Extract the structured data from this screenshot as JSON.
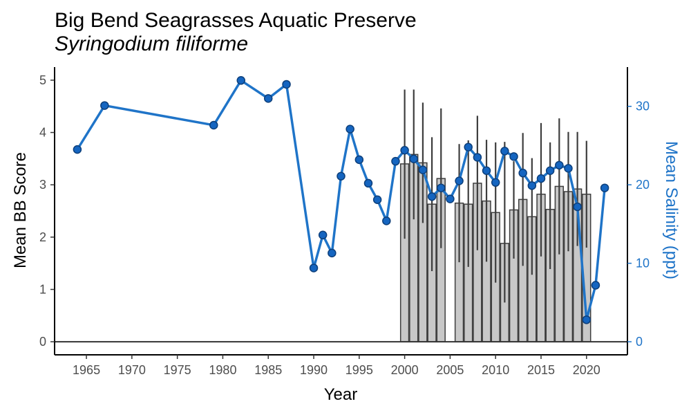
{
  "chart_data": {
    "type": "bar+line",
    "title": "Big Bend Seagrasses Aquatic Preserve",
    "subtitle": "Syringodium filiforme",
    "xlabel": "Year",
    "ylabel_left": "Mean BB Score",
    "ylabel_right": "Mean Salinity (ppt)",
    "xlim": [
      1961.5,
      2024.5
    ],
    "ylim_left": [
      -0.25,
      5.25
    ],
    "ylim_right": [
      -1.6667,
      35
    ],
    "x_ticks": [
      1965,
      1970,
      1975,
      1980,
      1985,
      1990,
      1995,
      2000,
      2005,
      2010,
      2015,
      2020
    ],
    "y_ticks_left": [
      0,
      1,
      2,
      3,
      4,
      5
    ],
    "y_ticks_right": [
      0,
      10,
      20,
      30
    ],
    "colors": {
      "bar_fill": "#c8c8c8",
      "bar_stroke": "#3d3d3d",
      "line": "#1f74c8",
      "point_fill": "#1565c0",
      "point_stroke": "#0d3f7a",
      "right_axis": "#1f74c8"
    },
    "bars": {
      "name": "Mean BB Score",
      "x": [
        2000,
        2001,
        2002,
        2003,
        2004,
        2006,
        2007,
        2008,
        2009,
        2010,
        2011,
        2012,
        2013,
        2014,
        2015,
        2016,
        2017,
        2018,
        2019,
        2020
      ],
      "values": [
        3.4,
        3.58,
        3.42,
        2.63,
        3.12,
        2.65,
        2.63,
        3.03,
        2.69,
        2.47,
        1.88,
        2.52,
        2.72,
        2.39,
        2.82,
        2.53,
        2.97,
        2.87,
        2.92,
        2.82
      ],
      "err_low": [
        1.97,
        2.34,
        2.27,
        1.35,
        1.79,
        1.52,
        1.43,
        1.75,
        1.53,
        1.13,
        0.75,
        1.59,
        1.45,
        1.28,
        1.63,
        1.39,
        1.67,
        1.73,
        1.83,
        1.8
      ],
      "err_high": [
        4.82,
        4.82,
        4.57,
        3.91,
        4.46,
        3.78,
        3.85,
        4.32,
        3.86,
        3.81,
        3.82,
        3.45,
        3.99,
        3.51,
        4.18,
        3.81,
        4.27,
        4.01,
        4.01,
        3.84
      ]
    },
    "line": {
      "name": "Mean Salinity (ppt)",
      "x": [
        1964,
        1967,
        1979,
        1982,
        1985,
        1987,
        1990,
        1991,
        1992,
        1993,
        1994,
        1995,
        1996,
        1997,
        1998,
        1999,
        2000,
        2001,
        2002,
        2003,
        2004,
        2005,
        2006,
        2007,
        2008,
        2009,
        2010,
        2011,
        2012,
        2013,
        2014,
        2015,
        2016,
        2017,
        2018,
        2019,
        2020,
        2021,
        2022
      ],
      "values": [
        24.5,
        30.1,
        27.6,
        33.3,
        31.0,
        32.8,
        9.4,
        13.6,
        11.3,
        21.1,
        27.1,
        23.2,
        20.2,
        18.1,
        15.4,
        23.0,
        24.4,
        23.3,
        21.9,
        18.5,
        19.6,
        18.2,
        20.5,
        24.8,
        23.5,
        21.8,
        20.3,
        24.3,
        23.6,
        21.5,
        19.9,
        20.8,
        21.8,
        22.5,
        22.1,
        17.2,
        2.8,
        7.2,
        19.6
      ]
    }
  }
}
